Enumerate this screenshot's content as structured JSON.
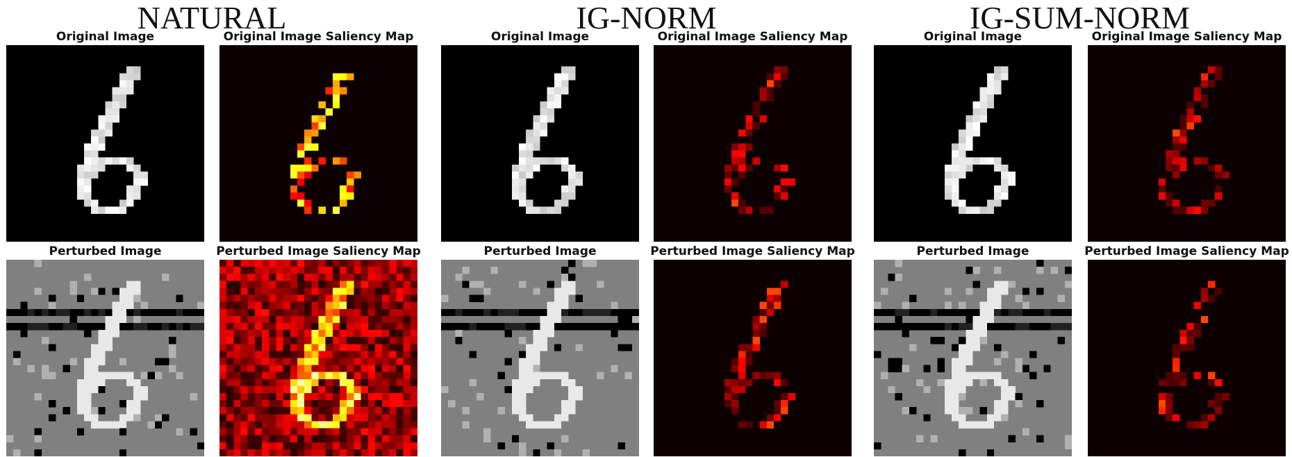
{
  "groups": [
    {
      "title": "NATURAL",
      "panels": [
        {
          "title": "Original Image"
        },
        {
          "title": "Original Image Saliency Map"
        },
        {
          "title": "Perturbed Image"
        },
        {
          "title": "Perturbed Image Saliency Map"
        }
      ]
    },
    {
      "title": "IG-NORM",
      "panels": [
        {
          "title": "Original Image"
        },
        {
          "title": "Original Image Saliency Map"
        },
        {
          "title": "Perturbed Image"
        },
        {
          "title": "Perturbed Image Saliency Map"
        }
      ]
    },
    {
      "title": "IG-SUM-NORM",
      "panels": [
        {
          "title": "Original Image"
        },
        {
          "title": "Original Image Saliency Map"
        },
        {
          "title": "Perturbed Image"
        },
        {
          "title": "Perturbed Image Saliency Map"
        }
      ]
    }
  ]
}
